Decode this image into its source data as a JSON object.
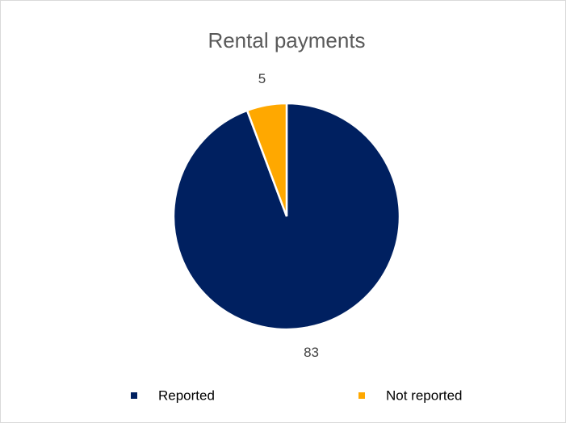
{
  "chart_data": {
    "type": "pie",
    "title": "Rental payments",
    "categories": [
      "Reported",
      "Not reported"
    ],
    "values": [
      83,
      5
    ],
    "colors": [
      "#002060",
      "#ffa800"
    ],
    "legend": "bottom"
  }
}
